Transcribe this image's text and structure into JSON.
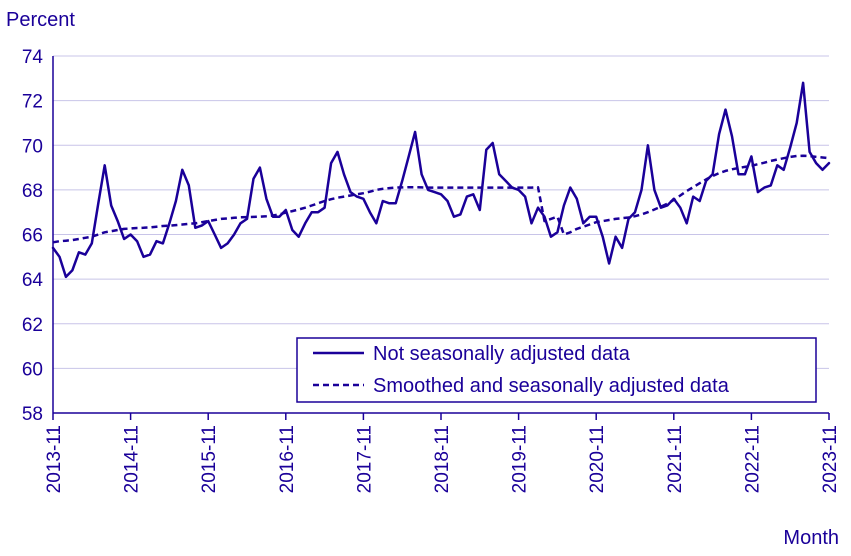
{
  "colors": {
    "series": "#1a0099",
    "text": "#1a0099",
    "grid": "#c8c4e8",
    "axis": "#1a0099",
    "legend_border": "#1a0099",
    "background": "#ffffff"
  },
  "chart_data": {
    "type": "line",
    "ylabel": "Percent",
    "xlabel": "Month",
    "ylim": [
      58,
      74
    ],
    "yticks": [
      58,
      60,
      62,
      64,
      66,
      68,
      70,
      72,
      74
    ],
    "xlim": [
      0,
      120
    ],
    "xticks": [
      {
        "i": 0,
        "label": "2013-11"
      },
      {
        "i": 12,
        "label": "2014-11"
      },
      {
        "i": 24,
        "label": "2015-11"
      },
      {
        "i": 36,
        "label": "2016-11"
      },
      {
        "i": 48,
        "label": "2017-11"
      },
      {
        "i": 60,
        "label": "2018-11"
      },
      {
        "i": 72,
        "label": "2019-11"
      },
      {
        "i": 84,
        "label": "2020-11"
      },
      {
        "i": 96,
        "label": "2021-11"
      },
      {
        "i": 108,
        "label": "2022-11"
      },
      {
        "i": 120,
        "label": "2023-11"
      }
    ],
    "grid": "horizontal",
    "legend_position": "bottom-right",
    "start_month": "2013-11",
    "end_month": "2023-11",
    "series": [
      {
        "name": "Not seasonally adjusted data",
        "style": "solid",
        "values": [
          65.4,
          65.0,
          64.1,
          64.4,
          65.2,
          65.1,
          65.6,
          67.4,
          69.1,
          67.3,
          66.6,
          65.8,
          66.0,
          65.7,
          65.0,
          65.1,
          65.7,
          65.6,
          66.5,
          67.5,
          68.9,
          68.2,
          66.3,
          66.4,
          66.6,
          66.0,
          65.4,
          65.6,
          66.0,
          66.5,
          66.7,
          68.5,
          69.0,
          67.6,
          66.8,
          66.8,
          67.1,
          66.2,
          65.9,
          66.5,
          67.0,
          67.0,
          67.2,
          69.2,
          69.7,
          68.7,
          67.9,
          67.7,
          67.6,
          67.0,
          66.5,
          67.5,
          67.4,
          67.4,
          68.4,
          69.5,
          70.6,
          68.7,
          68.0,
          67.9,
          67.8,
          67.5,
          66.8,
          66.9,
          67.7,
          67.8,
          67.1,
          69.8,
          70.1,
          68.7,
          68.4,
          68.1,
          68.0,
          67.7,
          66.5,
          67.2,
          66.8,
          65.9,
          66.1,
          67.3,
          68.1,
          67.6,
          66.5,
          66.8,
          66.8,
          65.9,
          64.7,
          65.9,
          65.4,
          66.7,
          67.0,
          68.0,
          70.0,
          68.0,
          67.2,
          67.3,
          67.6,
          67.2,
          66.5,
          67.7,
          67.5,
          68.4,
          68.7,
          70.5,
          71.6,
          70.4,
          68.7,
          68.7,
          69.5,
          67.9,
          68.1,
          68.2,
          69.1,
          68.9,
          69.9,
          71.0,
          72.8,
          69.7,
          69.2,
          68.9,
          69.2
        ]
      },
      {
        "name": "Smoothed and seasonally adjusted data",
        "style": "dashed",
        "values": [
          65.65,
          65.7,
          65.72,
          65.75,
          65.8,
          65.85,
          65.9,
          66.0,
          66.1,
          66.15,
          66.2,
          66.25,
          66.27,
          66.29,
          66.3,
          66.32,
          66.35,
          66.38,
          66.4,
          66.42,
          66.45,
          66.48,
          66.5,
          66.55,
          66.6,
          66.65,
          66.7,
          66.72,
          66.75,
          66.77,
          66.78,
          66.79,
          66.8,
          66.82,
          66.85,
          66.9,
          66.98,
          67.05,
          67.12,
          67.2,
          67.3,
          67.4,
          67.5,
          67.58,
          67.65,
          67.7,
          67.75,
          67.8,
          67.85,
          67.92,
          68.0,
          68.05,
          68.08,
          68.1,
          68.11,
          68.12,
          68.12,
          68.11,
          68.1,
          68.1,
          68.1,
          68.1,
          68.1,
          68.1,
          68.1,
          68.1,
          68.1,
          68.1,
          68.1,
          68.1,
          68.1,
          68.1,
          68.1,
          68.1,
          68.1,
          68.12,
          66.6,
          66.7,
          66.8,
          66.0,
          66.1,
          66.25,
          66.35,
          66.45,
          66.55,
          66.6,
          66.65,
          66.7,
          66.73,
          66.76,
          66.82,
          66.9,
          67.0,
          67.12,
          67.25,
          67.38,
          67.55,
          67.75,
          67.95,
          68.12,
          68.3,
          68.47,
          68.62,
          68.75,
          68.85,
          68.92,
          68.98,
          69.03,
          69.08,
          69.15,
          69.22,
          69.3,
          69.36,
          69.42,
          69.48,
          69.52,
          69.53,
          69.52,
          69.48,
          69.45,
          69.42
        ]
      }
    ]
  }
}
